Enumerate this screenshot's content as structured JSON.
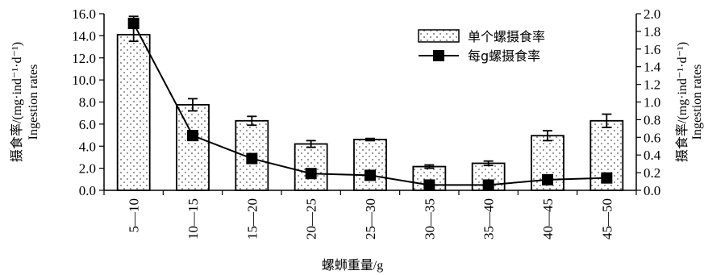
{
  "chart_data": {
    "type": "bar",
    "categories": [
      "5—10",
      "10—15",
      "15—20",
      "20—25",
      "25—30",
      "30—35",
      "35—40",
      "40—45",
      "45—50"
    ],
    "series": [
      {
        "name": "单个螺摄食率",
        "kind": "bar",
        "axis": "left",
        "values": [
          14.1,
          7.75,
          6.3,
          4.2,
          4.6,
          2.15,
          2.45,
          4.95,
          6.3
        ],
        "errors": [
          0.6,
          0.55,
          0.4,
          0.3,
          0.1,
          0.15,
          0.2,
          0.45,
          0.6
        ]
      },
      {
        "name": "每g螺摄食率",
        "kind": "line",
        "axis": "right",
        "values": [
          1.89,
          0.62,
          0.36,
          0.19,
          0.17,
          0.06,
          0.06,
          0.12,
          0.14
        ],
        "errors": [
          0.08,
          0.02,
          0.02,
          0.01,
          0.01,
          0.005,
          0.005,
          0.01,
          0.01
        ]
      }
    ],
    "xlabel": "螺蛳重量/g",
    "ylabel_left": [
      "摄食率/(mg·ind⁻¹·d⁻¹)",
      "Ingestion rates"
    ],
    "ylabel_right": [
      "摄食率/(mg·ind⁻¹·d⁻¹)",
      "Ingestion rates"
    ],
    "ylim_left": [
      0,
      16
    ],
    "ylim_right": [
      0,
      2
    ],
    "yticks_left": [
      "0.0",
      "2.0",
      "4.0",
      "6.0",
      "8.0",
      "10.0",
      "12.0",
      "14.0",
      "16.0"
    ],
    "yticks_right": [
      "0.0",
      "0.2",
      "0.4",
      "0.6",
      "0.8",
      "1.0",
      "1.2",
      "1.4",
      "1.6",
      "1.8",
      "2.0"
    ],
    "legend": {
      "position": "top-right",
      "entries": [
        "单个螺摄食率",
        "每g螺摄食率"
      ]
    },
    "grid": false
  }
}
